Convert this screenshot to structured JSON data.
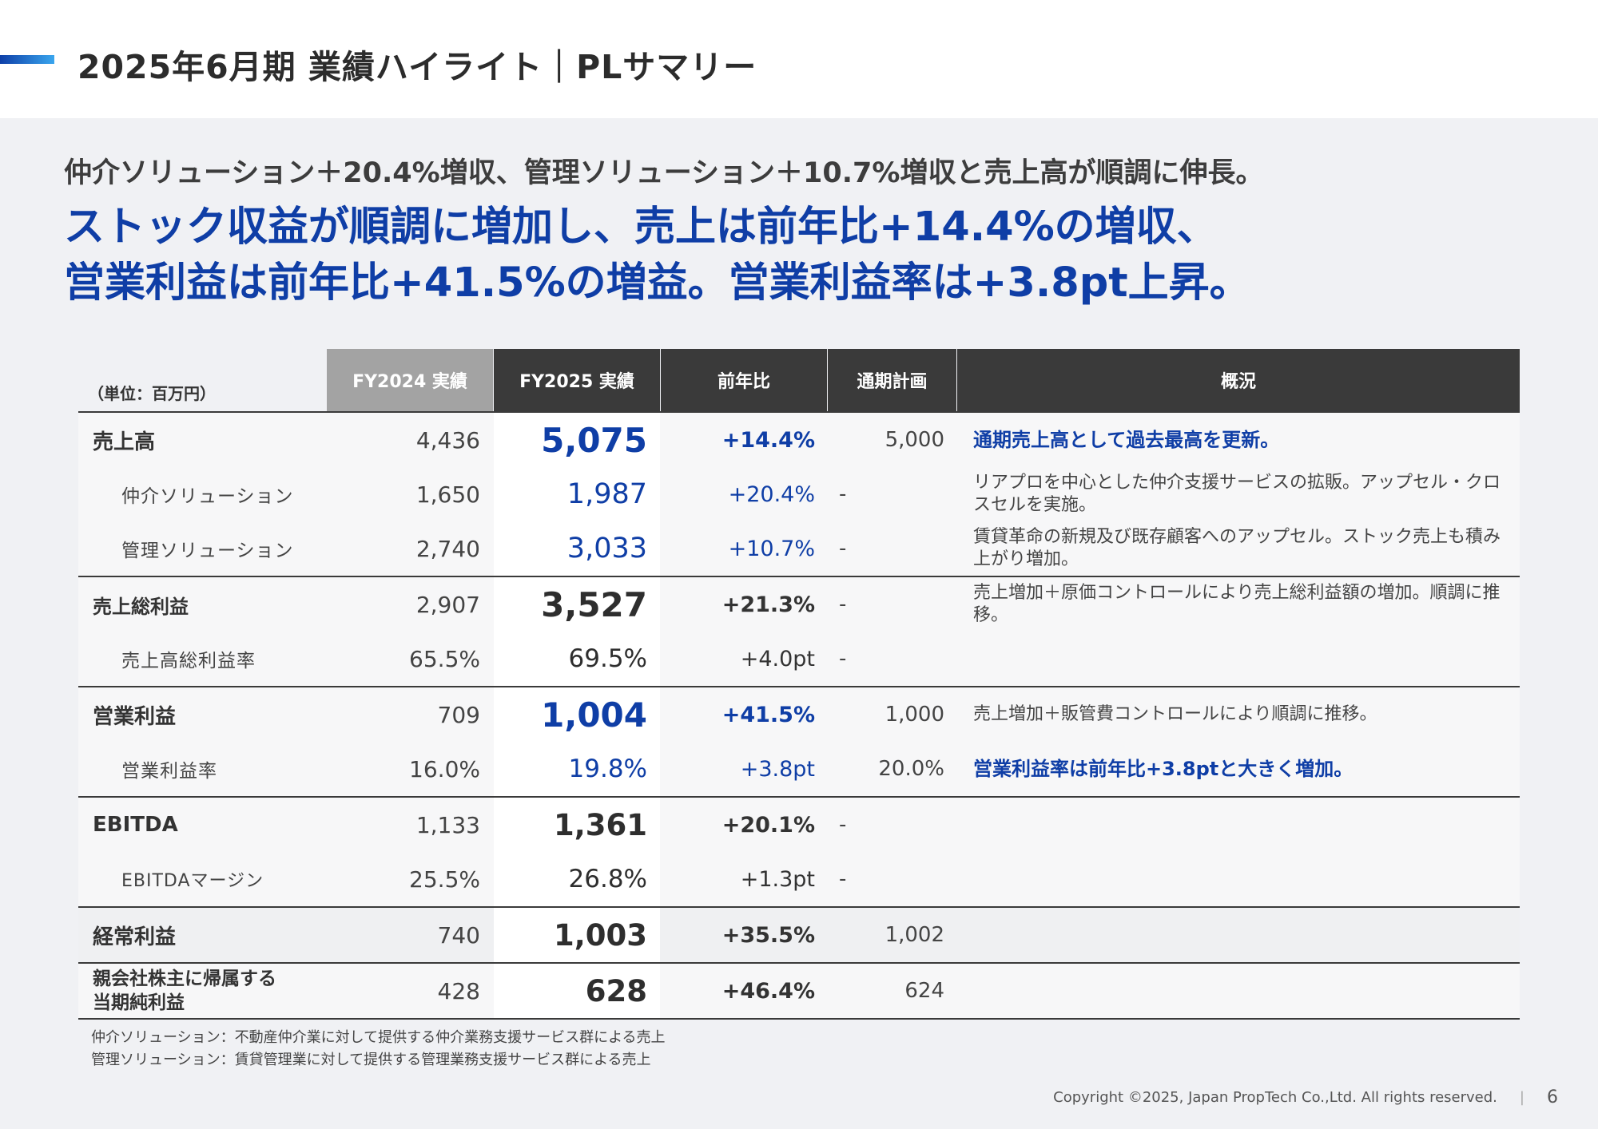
{
  "header": {
    "title": "2025年6月期 業績ハイライト｜PLサマリー"
  },
  "subtitle": "仲介ソリューション＋20.4%増収、管理ソリューション＋10.7%増収と売上高が順調に伸長。",
  "headline": {
    "line1": "ストック収益が順調に増加し、売上は前年比+14.4%の増収、",
    "line2": "営業利益は前年比+41.5%の増益。営業利益率は+3.8pt上昇。"
  },
  "table": {
    "unit": "（単位：百万円）",
    "columns": {
      "fy2024": "FY2024 実績",
      "fy2025": "FY2025 実績",
      "yoy": "前年比",
      "plan": "通期計画",
      "summary": "概況"
    },
    "rows": [
      {
        "label": "売上高",
        "fy2024": "4,436",
        "fy2025": "5,075",
        "yoy": "+14.4%",
        "plan": "5,000",
        "note": "通期売上高として過去最高を更新。"
      },
      {
        "label": "仲介ソリューション",
        "fy2024": "1,650",
        "fy2025": "1,987",
        "yoy": "+20.4%",
        "plan": "-",
        "note": "リアプロを中心とした仲介支援サービスの拡販。アップセル・クロスセルを実施。"
      },
      {
        "label": "管理ソリューション",
        "fy2024": "2,740",
        "fy2025": "3,033",
        "yoy": "+10.7%",
        "plan": "-",
        "note": "賃貸革命の新規及び既存顧客へのアップセル。ストック売上も積み上がり増加。"
      },
      {
        "label": "売上総利益",
        "fy2024": "2,907",
        "fy2025": "3,527",
        "yoy": "+21.3%",
        "plan": "-",
        "note": "売上増加＋原価コントロールにより売上総利益額の増加。順調に推移。"
      },
      {
        "label": "売上高総利益率",
        "fy2024": "65.5%",
        "fy2025": "69.5%",
        "yoy": "+4.0pt",
        "plan": "-",
        "note": ""
      },
      {
        "label": "営業利益",
        "fy2024": "709",
        "fy2025": "1,004",
        "yoy": "+41.5%",
        "plan": "1,000",
        "note": "売上増加＋販管費コントロールにより順調に推移。"
      },
      {
        "label": "営業利益率",
        "fy2024": "16.0%",
        "fy2025": "19.8%",
        "yoy": "+3.8pt",
        "plan": "20.0%",
        "note": "営業利益率は前年比+3.8ptと大きく増加。"
      },
      {
        "label": "EBITDA",
        "fy2024": "1,133",
        "fy2025": "1,361",
        "yoy": "+20.1%",
        "plan": "-",
        "note": ""
      },
      {
        "label": "EBITDAマージン",
        "fy2024": "25.5%",
        "fy2025": "26.8%",
        "yoy": "+1.3pt",
        "plan": "-",
        "note": ""
      },
      {
        "label": "経常利益",
        "fy2024": "740",
        "fy2025": "1,003",
        "yoy": "+35.5%",
        "plan": "1,002",
        "note": ""
      },
      {
        "label_line1": "親会社株主に帰属する",
        "label_line2": "当期純利益",
        "fy2024": "428",
        "fy2025": "628",
        "yoy": "+46.4%",
        "plan": "624",
        "note": ""
      }
    ]
  },
  "footnotes": {
    "line1": "仲介ソリューション：不動産仲介業に対して提供する仲介業務支援サービス群による売上",
    "line2": "管理ソリューション：賃貸管理業に対して提供する管理業務支援サービス群による売上"
  },
  "footer": {
    "copyright": "Copyright ©2025, Japan PropTech Co.,Ltd. All rights reserved.",
    "separator": "|",
    "page": "6"
  },
  "colors": {
    "accent_blue": "#0f3ea6",
    "header_fy2024": "#a3a3a3",
    "header_dark": "#3a3a3a"
  }
}
